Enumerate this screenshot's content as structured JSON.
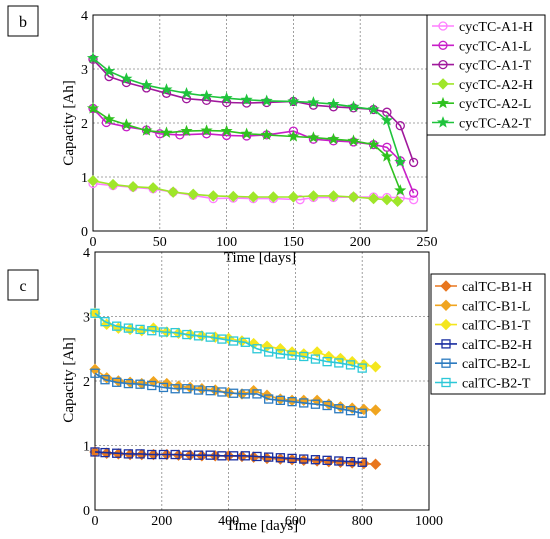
{
  "chart_data": [
    {
      "panel_label": "b",
      "type": "line",
      "xlabel": "Time [days]",
      "ylabel": "Capacity [Ah]",
      "xlim": [
        0,
        250
      ],
      "ylim": [
        0,
        4
      ],
      "xticks": [
        0,
        50,
        100,
        150,
        200,
        250
      ],
      "yticks": [
        0,
        1,
        2,
        3,
        4
      ],
      "grid": true,
      "legend_position": "right",
      "series": [
        {
          "name": "cycTC-A1-H",
          "color": "#ff7fff",
          "marker": "circle",
          "x": [
            0,
            15,
            30,
            45,
            60,
            75,
            90,
            105,
            120,
            135,
            155,
            165,
            180,
            195,
            210,
            220,
            230,
            240
          ],
          "y": [
            0.88,
            0.84,
            0.81,
            0.78,
            0.72,
            0.66,
            0.6,
            0.61,
            0.6,
            0.6,
            0.58,
            0.62,
            0.62,
            0.63,
            0.63,
            0.62,
            0.62,
            0.58
          ]
        },
        {
          "name": "cycTC-A1-L",
          "color": "#c81ec8",
          "marker": "circle",
          "x": [
            0,
            10,
            25,
            40,
            50,
            65,
            85,
            100,
            115,
            130,
            150,
            165,
            180,
            195,
            210,
            220,
            230,
            240
          ],
          "y": [
            2.27,
            2.01,
            1.93,
            1.87,
            1.8,
            1.78,
            1.8,
            1.77,
            1.76,
            1.78,
            1.85,
            1.7,
            1.67,
            1.65,
            1.6,
            1.55,
            1.3,
            0.7
          ]
        },
        {
          "name": "cycTC-A1-T",
          "color": "#a0189c",
          "marker": "circle",
          "x": [
            0,
            12,
            25,
            40,
            55,
            70,
            85,
            100,
            115,
            130,
            150,
            165,
            180,
            195,
            210,
            220,
            230,
            240
          ],
          "y": [
            3.18,
            2.86,
            2.75,
            2.65,
            2.55,
            2.45,
            2.42,
            2.38,
            2.37,
            2.38,
            2.4,
            2.33,
            2.3,
            2.28,
            2.25,
            2.2,
            1.95,
            1.27
          ]
        },
        {
          "name": "cycTC-A2-H",
          "color": "#9fe62a",
          "marker": "diamond",
          "x": [
            0,
            15,
            30,
            45,
            60,
            75,
            90,
            105,
            120,
            135,
            150,
            165,
            180,
            195,
            210,
            220,
            228
          ],
          "y": [
            0.93,
            0.86,
            0.82,
            0.8,
            0.72,
            0.68,
            0.65,
            0.64,
            0.63,
            0.63,
            0.63,
            0.65,
            0.65,
            0.63,
            0.6,
            0.58,
            0.55
          ]
        },
        {
          "name": "cycTC-A2-L",
          "color": "#2fc11f",
          "marker": "star",
          "x": [
            0,
            12,
            25,
            40,
            55,
            70,
            85,
            100,
            115,
            130,
            150,
            165,
            180,
            195,
            210,
            220,
            230
          ],
          "y": [
            2.27,
            2.07,
            1.97,
            1.86,
            1.82,
            1.85,
            1.86,
            1.85,
            1.8,
            1.78,
            1.75,
            1.73,
            1.7,
            1.67,
            1.6,
            1.38,
            0.75
          ]
        },
        {
          "name": "cycTC-A2-T",
          "color": "#1fc33c",
          "marker": "star",
          "x": [
            0,
            12,
            25,
            40,
            55,
            70,
            85,
            100,
            115,
            130,
            150,
            165,
            180,
            195,
            210,
            220,
            230
          ],
          "y": [
            3.2,
            2.96,
            2.82,
            2.7,
            2.62,
            2.55,
            2.5,
            2.46,
            2.43,
            2.41,
            2.4,
            2.38,
            2.35,
            2.3,
            2.25,
            2.05,
            1.28
          ]
        }
      ]
    },
    {
      "panel_label": "c",
      "type": "line",
      "xlabel": "Time [days]",
      "ylabel": "Capacity [Ah]",
      "xlim": [
        0,
        1000
      ],
      "ylim": [
        0,
        4
      ],
      "xticks": [
        0,
        200,
        400,
        600,
        800,
        1000
      ],
      "yticks": [
        0,
        1,
        2,
        3,
        4
      ],
      "grid": true,
      "legend_position": "right",
      "series": [
        {
          "name": "calTC-B1-H",
          "color": "#e8761e",
          "marker": "diamond",
          "x": [
            0,
            35,
            70,
            105,
            140,
            175,
            215,
            250,
            285,
            320,
            360,
            400,
            440,
            475,
            515,
            555,
            590,
            625,
            665,
            700,
            735,
            770,
            805,
            840
          ],
          "y": [
            0.9,
            0.88,
            0.87,
            0.86,
            0.86,
            0.86,
            0.86,
            0.85,
            0.85,
            0.84,
            0.84,
            0.84,
            0.83,
            0.82,
            0.8,
            0.79,
            0.78,
            0.77,
            0.76,
            0.75,
            0.74,
            0.73,
            0.72,
            0.71
          ]
        },
        {
          "name": "calTC-B1-L",
          "color": "#f0a520",
          "marker": "diamond",
          "x": [
            0,
            35,
            70,
            105,
            140,
            175,
            215,
            250,
            285,
            320,
            360,
            400,
            440,
            475,
            515,
            555,
            590,
            625,
            665,
            700,
            735,
            770,
            805,
            840
          ],
          "y": [
            2.18,
            2.05,
            2.0,
            1.98,
            1.96,
            1.99,
            1.96,
            1.92,
            1.9,
            1.88,
            1.86,
            1.82,
            1.8,
            1.85,
            1.78,
            1.72,
            1.7,
            1.7,
            1.7,
            1.64,
            1.6,
            1.58,
            1.56,
            1.55
          ]
        },
        {
          "name": "calTC-B1-T",
          "color": "#f4e61e",
          "marker": "diamond",
          "x": [
            0,
            35,
            70,
            105,
            140,
            175,
            215,
            250,
            285,
            320,
            360,
            400,
            440,
            475,
            515,
            555,
            590,
            625,
            665,
            700,
            735,
            770,
            805,
            840
          ],
          "y": [
            3.05,
            2.88,
            2.82,
            2.8,
            2.78,
            2.82,
            2.76,
            2.74,
            2.72,
            2.7,
            2.68,
            2.66,
            2.62,
            2.58,
            2.54,
            2.5,
            2.45,
            2.42,
            2.45,
            2.38,
            2.35,
            2.3,
            2.25,
            2.22
          ]
        },
        {
          "name": "calTC-B2-H",
          "color": "#1a2ea0",
          "marker": "square",
          "x": [
            0,
            30,
            65,
            100,
            135,
            170,
            205,
            240,
            275,
            310,
            345,
            380,
            415,
            450,
            485,
            520,
            555,
            590,
            625,
            660,
            695,
            730,
            765,
            800
          ],
          "y": [
            0.9,
            0.89,
            0.88,
            0.87,
            0.87,
            0.86,
            0.86,
            0.86,
            0.85,
            0.85,
            0.85,
            0.84,
            0.84,
            0.84,
            0.83,
            0.82,
            0.81,
            0.8,
            0.79,
            0.78,
            0.77,
            0.76,
            0.75,
            0.74
          ]
        },
        {
          "name": "calTC-B2-L",
          "color": "#2c7bc0",
          "marker": "square",
          "x": [
            0,
            30,
            65,
            100,
            135,
            170,
            205,
            240,
            275,
            310,
            345,
            380,
            415,
            450,
            485,
            520,
            555,
            590,
            625,
            660,
            695,
            730,
            765,
            800
          ],
          "y": [
            2.12,
            2.02,
            1.98,
            1.96,
            1.95,
            1.93,
            1.9,
            1.88,
            1.88,
            1.86,
            1.85,
            1.83,
            1.81,
            1.8,
            1.8,
            1.72,
            1.7,
            1.68,
            1.66,
            1.64,
            1.62,
            1.57,
            1.54,
            1.5
          ]
        },
        {
          "name": "calTC-B2-T",
          "color": "#2cc8d8",
          "marker": "square",
          "x": [
            0,
            30,
            65,
            100,
            135,
            170,
            205,
            240,
            275,
            310,
            345,
            380,
            415,
            450,
            485,
            520,
            555,
            590,
            625,
            660,
            695,
            730,
            765,
            800
          ],
          "y": [
            3.05,
            2.92,
            2.85,
            2.82,
            2.8,
            2.78,
            2.76,
            2.75,
            2.72,
            2.7,
            2.68,
            2.65,
            2.62,
            2.6,
            2.5,
            2.45,
            2.42,
            2.4,
            2.38,
            2.34,
            2.3,
            2.28,
            2.25,
            2.2
          ]
        }
      ]
    }
  ]
}
